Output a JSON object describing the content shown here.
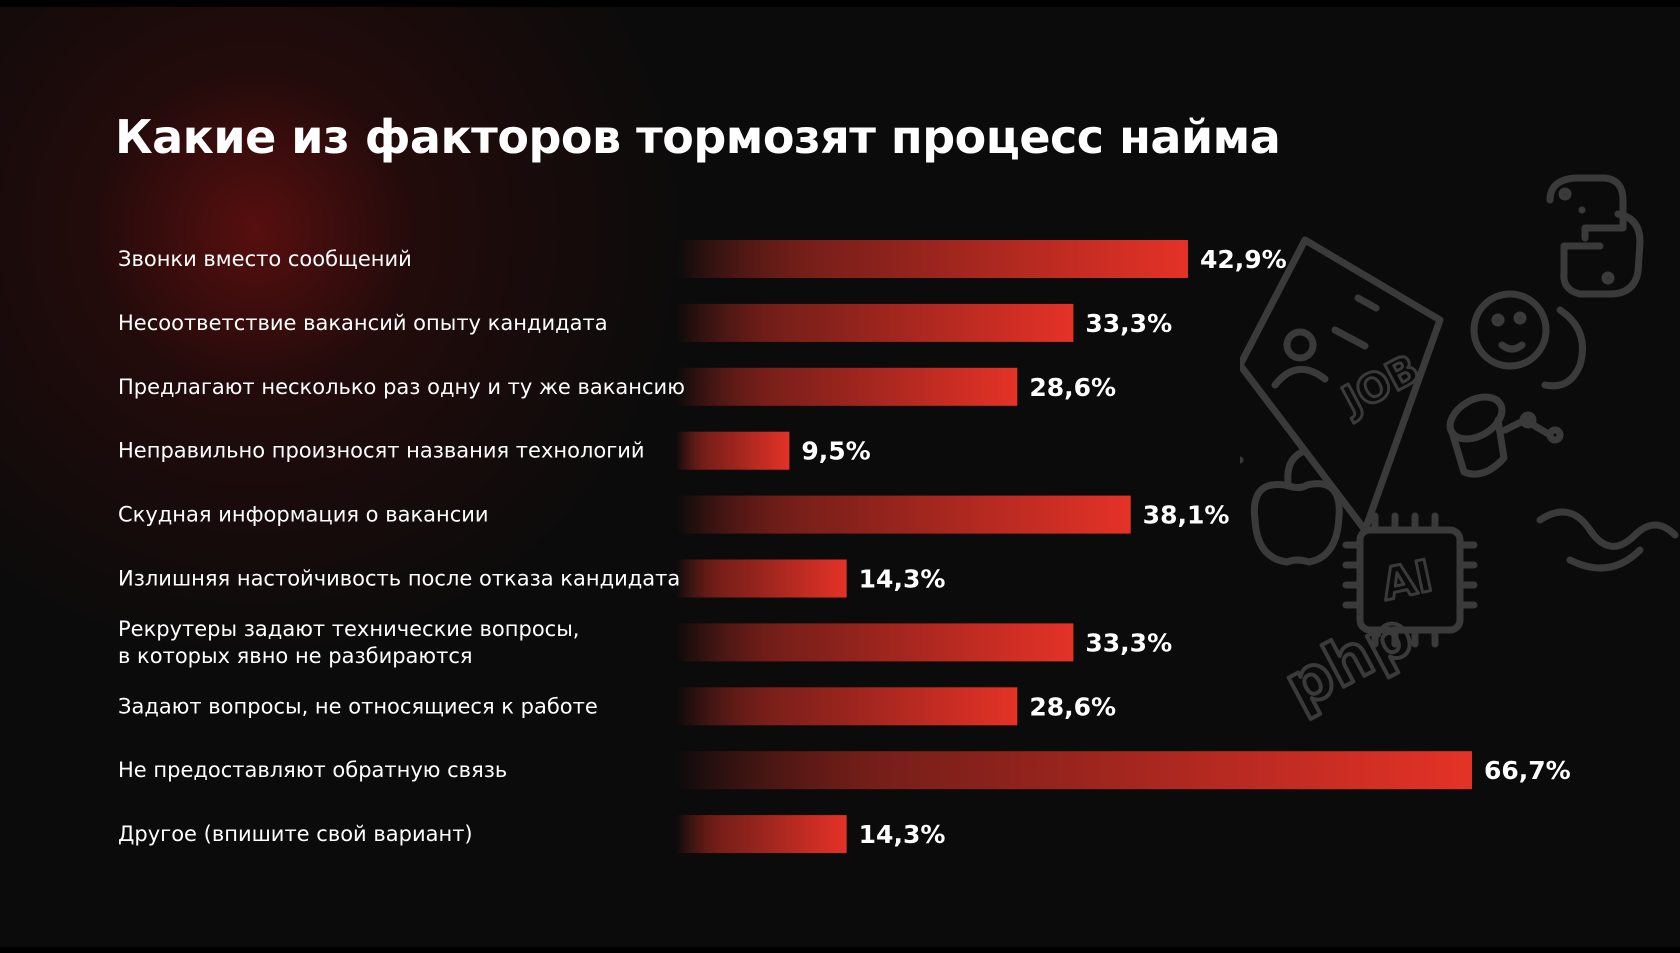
{
  "colors": {
    "background": "#0b0b0b",
    "bar_start": "#0b0b0b",
    "bar_end": "#e53227",
    "text": "#ffffff",
    "doodle": "#3a3a3a"
  },
  "decor": {
    "doodle_icons": [
      "python-logo-icon",
      "job-sheet-icon",
      "emoji-face-icon",
      "database-icon",
      "apple-logo-icon",
      "ai-chip-icon",
      "php-text-icon"
    ],
    "php_text": "php",
    "job_text": "JOB",
    "ai_text": "AI"
  },
  "chart_data": {
    "type": "bar",
    "orientation": "horizontal",
    "title": "Какие из факторов тормозят процесс найма",
    "xlabel": "",
    "ylabel": "",
    "xlim": [
      0,
      66.7
    ],
    "grid": false,
    "categories": [
      [
        "Звонки вместо сообщений"
      ],
      [
        "Несоответствие вакансий опыту кандидата"
      ],
      [
        "Предлагают несколько раз одну и ту же вакансию"
      ],
      [
        "Неправильно произносят названия технологий"
      ],
      [
        "Скудная информация о вакансии"
      ],
      [
        "Излишняя настойчивость после отказа кандидата"
      ],
      [
        "Рекрутеры задают технические вопросы,",
        "в которых явно не разбираются"
      ],
      [
        "Задают вопросы, не относящиеся к работе"
      ],
      [
        "Не предоставляют обратную связь"
      ],
      [
        "Другое (впишите свой вариант)"
      ]
    ],
    "values": [
      42.9,
      33.3,
      28.6,
      9.5,
      38.1,
      14.3,
      33.3,
      28.6,
      66.7,
      14.3
    ],
    "value_labels": [
      "42,9%",
      "33,3%",
      "28,6%",
      "9,5%",
      "38,1%",
      "14,3%",
      "33,3%",
      "28,6%",
      "66,7%",
      "14,3%"
    ]
  }
}
